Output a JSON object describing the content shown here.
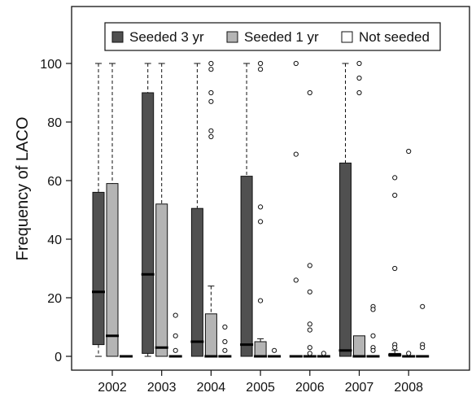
{
  "chart_data": {
    "type": "box",
    "ylabel": "Frequency of LACO",
    "xlabel": "",
    "ylim": [
      -3,
      106
    ],
    "yticks": [
      0,
      20,
      40,
      60,
      80,
      100
    ],
    "categories": [
      "2002",
      "2003",
      "2004",
      "2005",
      "2006",
      "2007",
      "2008"
    ],
    "legend_position": "top",
    "series": [
      {
        "name": "Seeded 3 yr",
        "color": "#505050",
        "boxes": [
          {
            "min": 0,
            "q1": 4,
            "median": 22,
            "q3": 56,
            "max": 100,
            "outliers": []
          },
          {
            "min": 0,
            "q1": 1,
            "median": 28,
            "q3": 90,
            "max": 100,
            "outliers": []
          },
          {
            "min": 0,
            "q1": 0,
            "median": 5,
            "q3": 50.5,
            "max": 100,
            "outliers": []
          },
          {
            "min": 0,
            "q1": 0,
            "median": 4,
            "q3": 61.5,
            "max": 100,
            "outliers": []
          },
          {
            "min": 0,
            "q1": 0,
            "median": 0,
            "q3": 0,
            "max": 0,
            "outliers": [
              100,
              69,
              26
            ]
          },
          {
            "min": 0,
            "q1": 0,
            "median": 2,
            "q3": 66,
            "max": 100,
            "outliers": []
          },
          {
            "min": 0,
            "q1": 0,
            "median": 0.5,
            "q3": 1,
            "max": 2,
            "outliers": [
              61,
              55,
              30,
              4,
              3
            ]
          }
        ]
      },
      {
        "name": "Seeded 1 yr",
        "color": "#b4b4b4",
        "boxes": [
          {
            "min": 0,
            "q1": 0,
            "median": 7,
            "q3": 59,
            "max": 100,
            "outliers": []
          },
          {
            "min": 0,
            "q1": 0,
            "median": 3,
            "q3": 52,
            "max": 100,
            "outliers": []
          },
          {
            "min": 0,
            "q1": 0,
            "median": 0,
            "q3": 14.5,
            "max": 24,
            "outliers": [
              100,
              98,
              90,
              87,
              77,
              75
            ]
          },
          {
            "min": 0,
            "q1": 0,
            "median": 0,
            "q3": 5,
            "max": 6,
            "outliers": [
              100,
              98,
              51,
              46,
              19
            ]
          },
          {
            "min": 0,
            "q1": 0,
            "median": 0,
            "q3": 0,
            "max": 0,
            "outliers": [
              90,
              31,
              22,
              11,
              9,
              3,
              1
            ]
          },
          {
            "min": 0,
            "q1": 0,
            "median": 0,
            "q3": 7,
            "max": 7,
            "outliers": [
              100,
              95,
              90
            ]
          },
          {
            "min": 0,
            "q1": 0,
            "median": 0,
            "q3": 0,
            "max": 0,
            "outliers": [
              70,
              1
            ]
          }
        ]
      },
      {
        "name": "Not seeded",
        "color": "#ffffff",
        "boxes": [
          {
            "min": 0,
            "q1": 0,
            "median": 0,
            "q3": 0,
            "max": 0,
            "outliers": []
          },
          {
            "min": 0,
            "q1": 0,
            "median": 0,
            "q3": 0,
            "max": 0,
            "outliers": [
              14,
              7,
              2
            ]
          },
          {
            "min": 0,
            "q1": 0,
            "median": 0,
            "q3": 0,
            "max": 0,
            "outliers": [
              10,
              5,
              2
            ]
          },
          {
            "min": 0,
            "q1": 0,
            "median": 0,
            "q3": 0,
            "max": 0,
            "outliers": [
              2
            ]
          },
          {
            "min": 0,
            "q1": 0,
            "median": 0,
            "q3": 0,
            "max": 0,
            "outliers": [
              1
            ]
          },
          {
            "min": 0,
            "q1": 0,
            "median": 0,
            "q3": 0,
            "max": 0,
            "outliers": [
              17,
              16,
              7,
              3,
              2
            ]
          },
          {
            "min": 0,
            "q1": 0,
            "median": 0,
            "q3": 0,
            "max": 0,
            "outliers": [
              17,
              4,
              3
            ]
          }
        ]
      }
    ]
  }
}
